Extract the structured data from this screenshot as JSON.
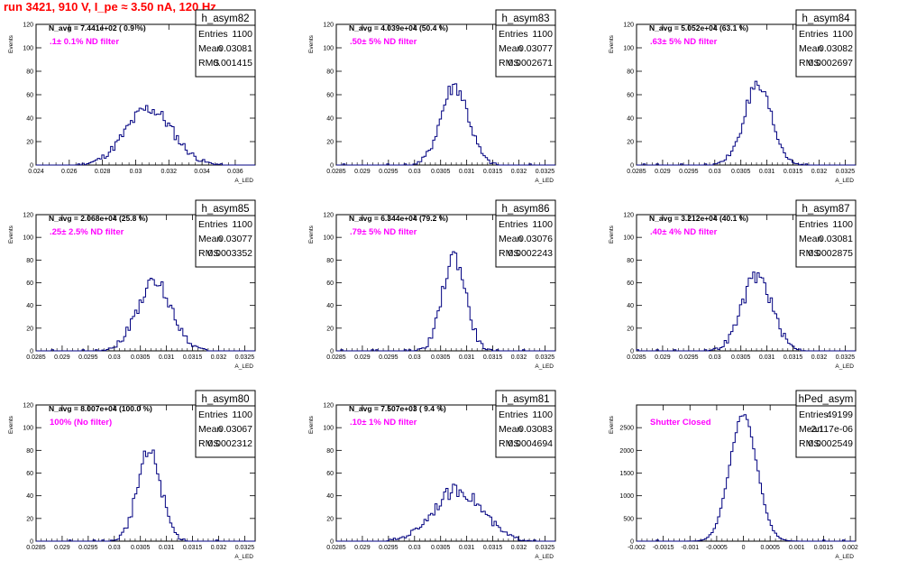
{
  "title": "run 3421,   910 V, I_pe ≈ 3.50 nA, 120 Hz",
  "chart_data": [
    {
      "type": "histogram",
      "name": "h_asym82",
      "n_avg": "N_avg = 7.441e+02 ( 0.9 %)",
      "filter_label": ".1± 0.1% ND filter",
      "stats": {
        "entries": "1100",
        "mean": "0.03081",
        "rms": "0.001415"
      },
      "labels": {
        "entries": "Entries",
        "mean": "Mean",
        "rms": "RMS"
      },
      "xlabel": "A_LED",
      "ylabel": "Events",
      "xlim": [
        0.024,
        0.0372
      ],
      "ylim": [
        0,
        120
      ],
      "x_ticks": [
        0.024,
        0.026,
        0.028,
        0.03,
        0.032,
        0.034,
        0.036
      ],
      "x_tick_labels": [
        "0.024",
        "0.026",
        "0.028",
        "0.03",
        "0.032",
        "0.034",
        "0.036"
      ],
      "y_ticks": [
        0,
        20,
        40,
        60,
        80,
        100,
        120
      ],
      "y_tick_labels": [
        "0",
        "20",
        "40",
        "60",
        "80",
        "100",
        "120"
      ],
      "mean": 0.03081,
      "sigma": 0.001415,
      "peak": 48
    },
    {
      "type": "histogram",
      "name": "h_asym83",
      "n_avg": "N_avg = 4.039e+04 (50.4 %)",
      "filter_label": ".50± 5% ND filter",
      "stats": {
        "entries": "1100",
        "mean": "0.03077",
        "rms": "0.0002671"
      },
      "labels": {
        "entries": "Entries",
        "mean": "Mean",
        "rms": "RMS"
      },
      "xlabel": "A_LED",
      "ylabel": "Events",
      "xlim": [
        0.0285,
        0.0327
      ],
      "ylim": [
        0,
        120
      ],
      "x_ticks": [
        0.0285,
        0.029,
        0.0295,
        0.03,
        0.0305,
        0.031,
        0.0315,
        0.032,
        0.0325
      ],
      "x_tick_labels": [
        "0.0285",
        "0.029",
        "0.0295",
        "0.03",
        "0.0305",
        "0.031",
        "0.0315",
        "0.032",
        "0.0325"
      ],
      "y_ticks": [
        0,
        20,
        40,
        60,
        80,
        100,
        120
      ],
      "y_tick_labels": [
        "0",
        "20",
        "40",
        "60",
        "80",
        "100",
        "120"
      ],
      "mean": 0.03077,
      "sigma": 0.0002671,
      "peak": 68
    },
    {
      "type": "histogram",
      "name": "h_asym84",
      "n_avg": "N_avg = 5.052e+04 (63.1 %)",
      "filter_label": ".63± 5% ND filter",
      "stats": {
        "entries": "1100",
        "mean": "0.03082",
        "rms": "0.0002697"
      },
      "labels": {
        "entries": "Entries",
        "mean": "Mean",
        "rms": "RMS"
      },
      "xlabel": "A_LED",
      "ylabel": "Events",
      "xlim": [
        0.0285,
        0.0327
      ],
      "ylim": [
        0,
        120
      ],
      "x_ticks": [
        0.0285,
        0.029,
        0.0295,
        0.03,
        0.0305,
        0.031,
        0.0315,
        0.032,
        0.0325
      ],
      "x_tick_labels": [
        "0.0285",
        "0.029",
        "0.0295",
        "0.03",
        "0.0305",
        "0.031",
        "0.0315",
        "0.032",
        "0.0325"
      ],
      "y_ticks": [
        0,
        20,
        40,
        60,
        80,
        100,
        120
      ],
      "y_tick_labels": [
        "0",
        "20",
        "40",
        "60",
        "80",
        "100",
        "120"
      ],
      "mean": 0.03082,
      "sigma": 0.0002697,
      "peak": 65
    },
    {
      "type": "histogram",
      "name": "h_asym85",
      "n_avg": "N_avg = 2.068e+04 (25.8 %)",
      "filter_label": ".25± 2.5% ND filter",
      "stats": {
        "entries": "1100",
        "mean": "0.03077",
        "rms": "0.0003352"
      },
      "labels": {
        "entries": "Entries",
        "mean": "Mean",
        "rms": "RMS"
      },
      "xlabel": "A_LED",
      "ylabel": "Events",
      "xlim": [
        0.0285,
        0.0327
      ],
      "ylim": [
        0,
        120
      ],
      "x_ticks": [
        0.0285,
        0.029,
        0.0295,
        0.03,
        0.0305,
        0.031,
        0.0315,
        0.032,
        0.0325
      ],
      "x_tick_labels": [
        "0.0285",
        "0.029",
        "0.0295",
        "0.03",
        "0.0305",
        "0.031",
        "0.0315",
        "0.032",
        "0.0325"
      ],
      "y_ticks": [
        0,
        20,
        40,
        60,
        80,
        100,
        120
      ],
      "y_tick_labels": [
        "0",
        "20",
        "40",
        "60",
        "80",
        "100",
        "120"
      ],
      "mean": 0.03077,
      "sigma": 0.0003352,
      "peak": 60
    },
    {
      "type": "histogram",
      "name": "h_asym86",
      "n_avg": "N_avg = 6.344e+04 (79.2 %)",
      "filter_label": ".79± 5% ND filter",
      "stats": {
        "entries": "1100",
        "mean": "0.03076",
        "rms": "0.0002243"
      },
      "labels": {
        "entries": "Entries",
        "mean": "Mean",
        "rms": "RMS"
      },
      "xlabel": "A_LED",
      "ylabel": "Events",
      "xlim": [
        0.0285,
        0.0327
      ],
      "ylim": [
        0,
        120
      ],
      "x_ticks": [
        0.0285,
        0.029,
        0.0295,
        0.03,
        0.0305,
        0.031,
        0.0315,
        0.032,
        0.0325
      ],
      "x_tick_labels": [
        "0.0285",
        "0.029",
        "0.0295",
        "0.03",
        "0.0305",
        "0.031",
        "0.0315",
        "0.032",
        "0.0325"
      ],
      "y_ticks": [
        0,
        20,
        40,
        60,
        80,
        100,
        120
      ],
      "y_tick_labels": [
        "0",
        "20",
        "40",
        "60",
        "80",
        "100",
        "120"
      ],
      "mean": 0.03076,
      "sigma": 0.0002243,
      "peak": 83
    },
    {
      "type": "histogram",
      "name": "h_asym87",
      "n_avg": "N_avg = 3.212e+04 (40.1 %)",
      "filter_label": ".40± 4% ND filter",
      "stats": {
        "entries": "1100",
        "mean": "0.03081",
        "rms": "0.0002875"
      },
      "labels": {
        "entries": "Entries",
        "mean": "Mean",
        "rms": "RMS"
      },
      "xlabel": "A_LED",
      "ylabel": "Events",
      "xlim": [
        0.0285,
        0.0327
      ],
      "ylim": [
        0,
        120
      ],
      "x_ticks": [
        0.0285,
        0.029,
        0.0295,
        0.03,
        0.0305,
        0.031,
        0.0315,
        0.032,
        0.0325
      ],
      "x_tick_labels": [
        "0.0285",
        "0.029",
        "0.0295",
        "0.03",
        "0.0305",
        "0.031",
        "0.0315",
        "0.032",
        "0.0325"
      ],
      "y_ticks": [
        0,
        20,
        40,
        60,
        80,
        100,
        120
      ],
      "y_tick_labels": [
        "0",
        "20",
        "40",
        "60",
        "80",
        "100",
        "120"
      ],
      "mean": 0.03081,
      "sigma": 0.0002875,
      "peak": 66
    },
    {
      "type": "histogram",
      "name": "h_asym80",
      "n_avg": "N_avg = 8.007e+04 (100.0 %)",
      "filter_label": "100% (No filter)",
      "stats": {
        "entries": "1100",
        "mean": "0.03067",
        "rms": "0.0002312"
      },
      "labels": {
        "entries": "Entries",
        "mean": "Mean",
        "rms": "RMS"
      },
      "xlabel": "A_LED",
      "ylabel": "Events",
      "xlim": [
        0.0285,
        0.0327
      ],
      "ylim": [
        0,
        120
      ],
      "x_ticks": [
        0.0285,
        0.029,
        0.0295,
        0.03,
        0.0305,
        0.031,
        0.0315,
        0.032,
        0.0325
      ],
      "x_tick_labels": [
        "0.0285",
        "0.029",
        "0.0295",
        "0.03",
        "0.0305",
        "0.031",
        "0.0315",
        "0.032",
        "0.0325"
      ],
      "y_ticks": [
        0,
        20,
        40,
        60,
        80,
        100,
        120
      ],
      "y_tick_labels": [
        "0",
        "20",
        "40",
        "60",
        "80",
        "100",
        "120"
      ],
      "mean": 0.03067,
      "sigma": 0.0002312,
      "peak": 78
    },
    {
      "type": "histogram",
      "name": "h_asym81",
      "n_avg": "N_avg = 7.507e+03 ( 9.4 %)",
      "filter_label": ".10± 1% ND filter",
      "stats": {
        "entries": "1100",
        "mean": "0.03083",
        "rms": "0.0004694"
      },
      "labels": {
        "entries": "Entries",
        "mean": "Mean",
        "rms": "RMS"
      },
      "xlabel": "A_LED",
      "ylabel": "Events",
      "xlim": [
        0.0285,
        0.0327
      ],
      "ylim": [
        0,
        120
      ],
      "x_ticks": [
        0.0285,
        0.029,
        0.0295,
        0.03,
        0.0305,
        0.031,
        0.0315,
        0.032,
        0.0325
      ],
      "x_tick_labels": [
        "0.0285",
        "0.029",
        "0.0295",
        "0.03",
        "0.0305",
        "0.031",
        "0.0315",
        "0.032",
        "0.0325"
      ],
      "y_ticks": [
        0,
        20,
        40,
        60,
        80,
        100,
        120
      ],
      "y_tick_labels": [
        "0",
        "20",
        "40",
        "60",
        "80",
        "100",
        "120"
      ],
      "mean": 0.03083,
      "sigma": 0.0004694,
      "peak": 45
    },
    {
      "type": "histogram",
      "name": "hPed_asym",
      "n_avg": "",
      "filter_label": "Shutter Closed",
      "stats": {
        "entries": "49199",
        "mean": "-2.117e-06",
        "rms": "0.0002549"
      },
      "labels": {
        "entries": "Entries",
        "mean": "Mean",
        "rms": "RMS"
      },
      "xlabel": "A_LED",
      "ylabel": "Events",
      "xlim": [
        -0.002,
        0.0021
      ],
      "ylim": [
        0,
        3000
      ],
      "x_ticks": [
        -0.002,
        -0.0015,
        -0.001,
        -0.0005,
        0,
        0.0005,
        0.001,
        0.0015,
        0.002
      ],
      "x_tick_labels": [
        "-0.002",
        "-0.0015",
        "-0.001",
        "-0.0005",
        "0",
        "0.0005",
        "0.001",
        "0.0015",
        "0.002"
      ],
      "y_ticks": [
        0,
        500,
        1000,
        1500,
        2000,
        2500
      ],
      "y_tick_labels": [
        "0",
        "500",
        "1000",
        "1500",
        "2000",
        "2500"
      ],
      "mean": -2.117e-06,
      "sigma": 0.0002549,
      "peak": 2780
    }
  ]
}
